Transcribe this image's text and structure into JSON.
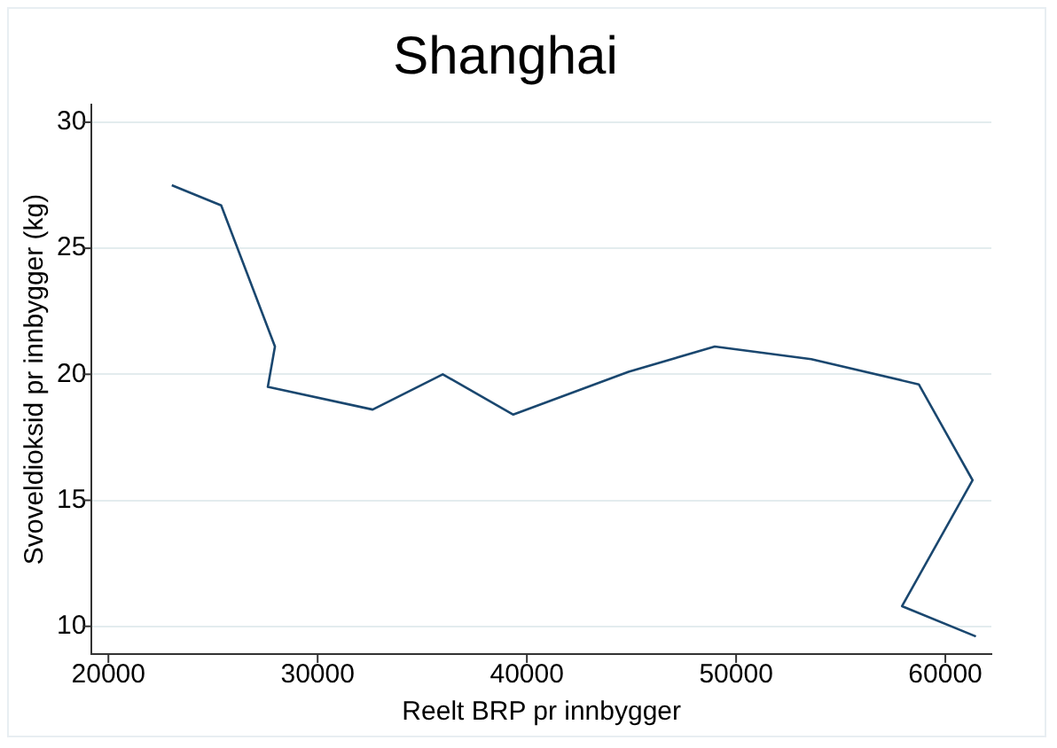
{
  "chart_data": {
    "type": "line",
    "title": "Shanghai",
    "xlabel": "Reelt BRP pr innbygger",
    "ylabel": "Svoveldioksid pr innbygger (kg)",
    "series": [
      {
        "color": "#1a476f",
        "x": [
          23030,
          25390,
          27960,
          27620,
          32630,
          35980,
          39350,
          44860,
          48980,
          53590,
          58730,
          61300,
          57930,
          61460
        ],
        "values": [
          27.5,
          26.7,
          21.1,
          19.5,
          18.6,
          20.0,
          18.4,
          20.1,
          21.1,
          20.6,
          19.6,
          15.8,
          10.8,
          9.6
        ]
      }
    ],
    "xlim": [
      19200,
      62200
    ],
    "xticks": [
      20000,
      30000,
      40000,
      50000,
      60000
    ],
    "ylim": [
      8.9,
      30.7
    ],
    "yticks": [
      10,
      15,
      20,
      25,
      30
    ],
    "grid": "y",
    "legend": false,
    "marker": "none",
    "line_style": "solid"
  }
}
